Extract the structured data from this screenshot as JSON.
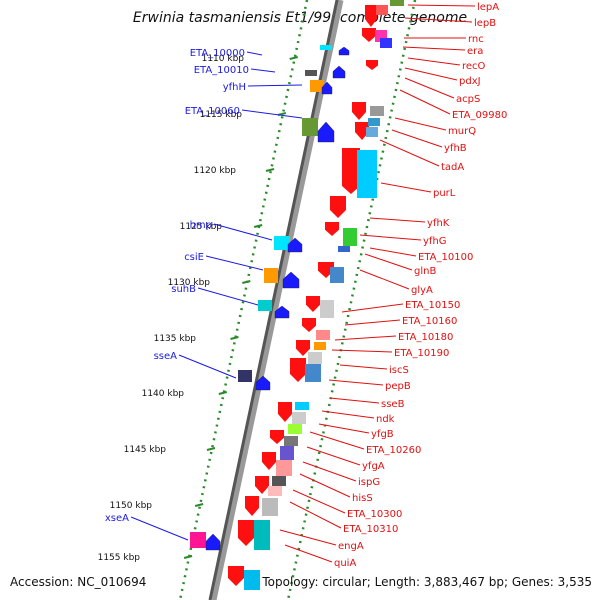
{
  "title": "Erwinia tasmaniensis Et1/99, complete genome",
  "footer": {
    "accession": "Accession: NC_010694",
    "topology": "Topology: circular; Length: 3,883,467 bp; Genes: 3,535"
  },
  "colors": {
    "forward_label": "#1a1ae6",
    "reverse_label": "#e01010",
    "ruler": "#2a8a2a"
  },
  "ruler_ticks": [
    "1110 kbp",
    "1115 kbp",
    "1120 kbp",
    "1125 kbp",
    "1130 kbp",
    "1135 kbp",
    "1140 kbp",
    "1145 kbp",
    "1150 kbp",
    "1155 kbp"
  ],
  "forward_genes": [
    "ETA_10000",
    "ETA_10010",
    "yfhH",
    "ETA_10060",
    "hmp",
    "csiE",
    "suhB",
    "sseA",
    "xseA"
  ],
  "reverse_genes": [
    "lepA",
    "lepB",
    "rnc",
    "era",
    "recO",
    "pdxJ",
    "acpS",
    "ETA_09980",
    "murQ",
    "yfhB",
    "tadA",
    "purL",
    "yfhK",
    "yfhG",
    "ETA_10100",
    "glnB",
    "glyA",
    "ETA_10150",
    "ETA_10160",
    "ETA_10180",
    "ETA_10190",
    "iscS",
    "pepB",
    "sseB",
    "ndk",
    "yfgB",
    "ETA_10260",
    "yfgA",
    "ispG",
    "hisS",
    "ETA_10300",
    "ETA_10310",
    "engA",
    "quiA"
  ]
}
